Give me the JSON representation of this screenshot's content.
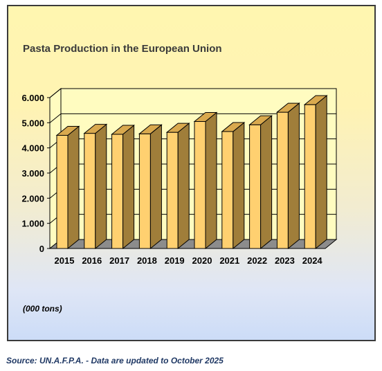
{
  "chart_data": {
    "type": "bar",
    "title": "Pasta Production in the European Union",
    "unit_note": "(000 tons)",
    "categories": [
      "2015",
      "2016",
      "2017",
      "2018",
      "2019",
      "2020",
      "2021",
      "2022",
      "2023",
      "2024"
    ],
    "values": [
      4500,
      4580,
      4540,
      4560,
      4620,
      5050,
      4650,
      4920,
      5420,
      5720
    ],
    "ylim": [
      0,
      6000
    ],
    "yticks": [
      "0",
      "1.000",
      "2.000",
      "3.000",
      "4.000",
      "5.000",
      "6.000"
    ],
    "three_d": true,
    "grid": true,
    "legend": "none",
    "colors": {
      "bar_front": "#ffd070",
      "bar_side": "#a07e3a",
      "bar_top": "#d9a94e",
      "floor": "#8c8c8c",
      "wall": "#fffcc0",
      "grid": "#000000"
    }
  },
  "source": "Source: UN.A.F.P.A. - Data are updated to October 2025"
}
